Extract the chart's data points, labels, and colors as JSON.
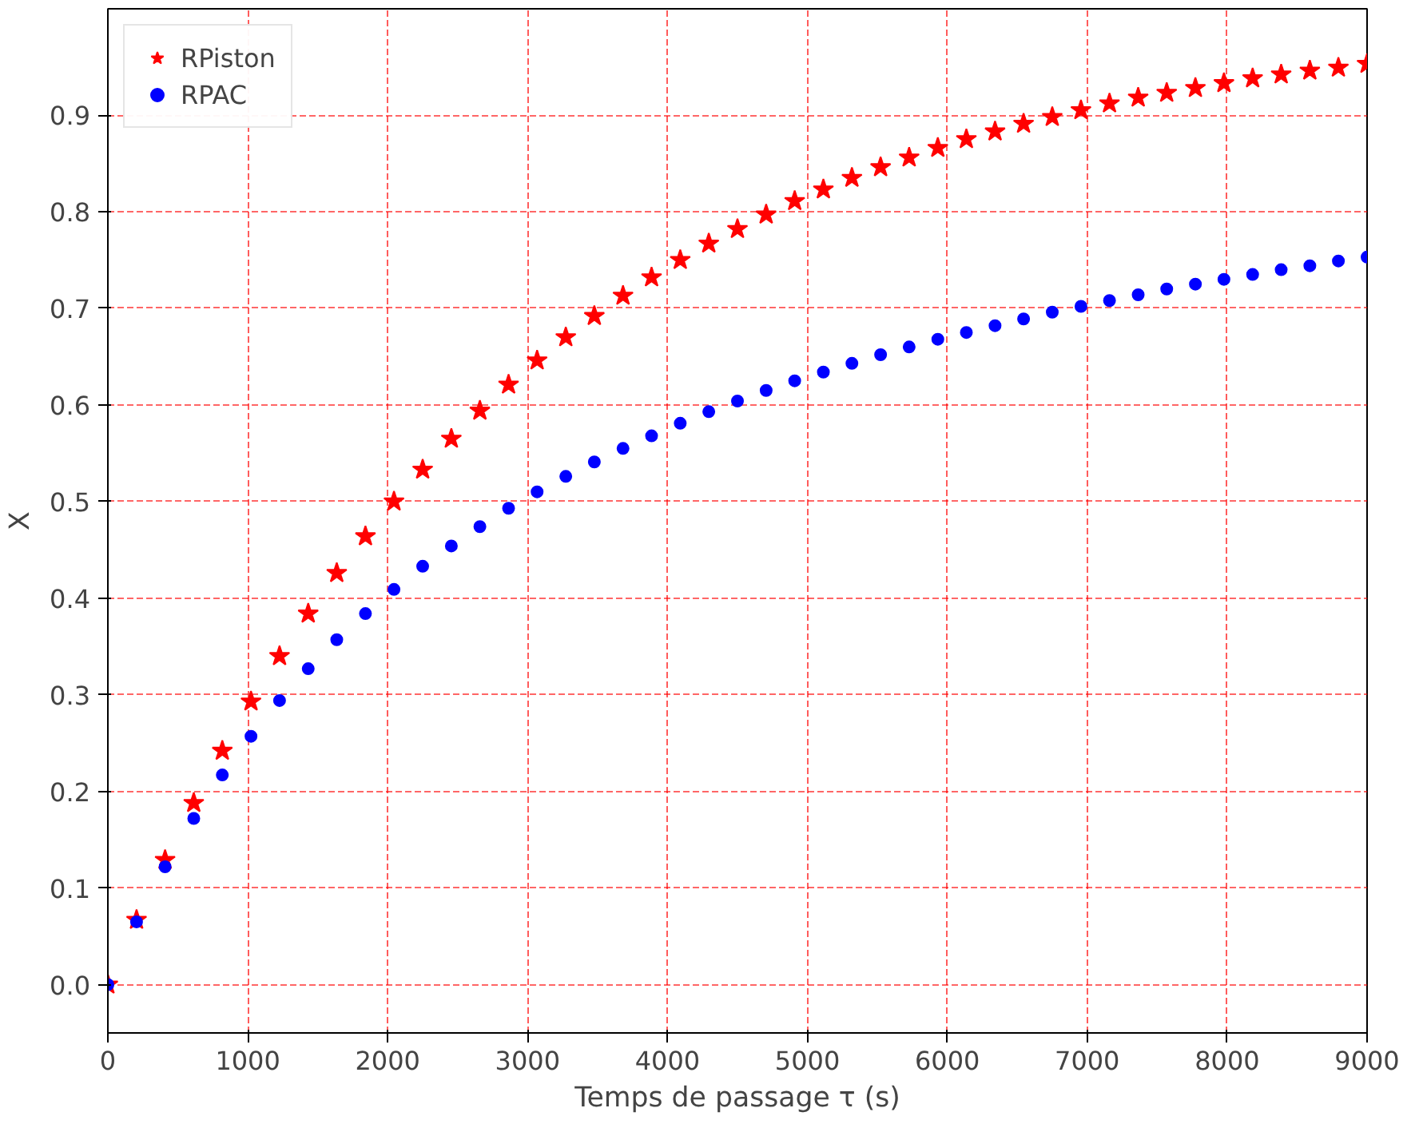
{
  "chart_data": {
    "type": "scatter",
    "xlabel": "Temps de passage τ (s)",
    "ylabel": "X",
    "x": [
      0,
      205,
      409,
      614,
      818,
      1023,
      1227,
      1432,
      1636,
      1841,
      2045,
      2250,
      2455,
      2659,
      2864,
      3068,
      3273,
      3477,
      3682,
      3886,
      4091,
      4295,
      4500,
      4705,
      4909,
      5114,
      5318,
      5523,
      5727,
      5932,
      6136,
      6341,
      6545,
      6750,
      6955,
      7159,
      7364,
      7568,
      7773,
      7977,
      8182,
      8386,
      8591,
      8795,
      9000
    ],
    "series": [
      {
        "name": "RPiston",
        "color": "#ff0000",
        "marker": "star",
        "values": [
          0,
          0.067,
          0.129,
          0.188,
          0.242,
          0.293,
          0.34,
          0.384,
          0.426,
          0.464,
          0.5,
          0.533,
          0.565,
          0.594,
          0.621,
          0.646,
          0.67,
          0.692,
          0.713,
          0.732,
          0.75,
          0.767,
          0.782,
          0.797,
          0.811,
          0.823,
          0.835,
          0.846,
          0.856,
          0.866,
          0.875,
          0.883,
          0.891,
          0.898,
          0.905,
          0.912,
          0.918,
          0.923,
          0.928,
          0.933,
          0.938,
          0.942,
          0.946,
          0.949,
          0.953
        ]
      },
      {
        "name": "RPAC",
        "color": "#0000ff",
        "marker": "circle",
        "values": [
          0,
          0.065,
          0.122,
          0.172,
          0.217,
          0.257,
          0.294,
          0.327,
          0.357,
          0.384,
          0.409,
          0.433,
          0.454,
          0.474,
          0.493,
          0.51,
          0.526,
          0.541,
          0.555,
          0.568,
          0.581,
          0.593,
          0.604,
          0.615,
          0.625,
          0.634,
          0.643,
          0.652,
          0.66,
          0.668,
          0.675,
          0.682,
          0.689,
          0.696,
          0.702,
          0.708,
          0.714,
          0.72,
          0.725,
          0.73,
          0.735,
          0.74,
          0.744,
          0.749,
          0.753
        ]
      }
    ],
    "xlim": [
      0,
      9000
    ],
    "ylim": [
      -0.05,
      1.01
    ],
    "xticks": [
      0,
      1000,
      2000,
      3000,
      4000,
      5000,
      6000,
      7000,
      8000,
      9000
    ],
    "yticks": [
      {
        "value": 0,
        "label": "0.0"
      },
      0.1,
      0.2,
      0.3,
      0.4,
      0.5,
      0.6,
      0.7,
      0.8,
      0.9
    ],
    "grid": true,
    "legend": "top left"
  }
}
